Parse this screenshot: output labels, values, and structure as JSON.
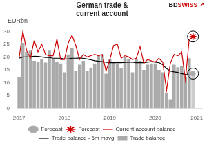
{
  "chart_data": {
    "type": "bar",
    "title": "German trade &\ncurrent account",
    "ylabel": "EURbn",
    "annotations": [
      {
        "text": "BD",
        "color": "#222222"
      },
      {
        "text": "SWISS",
        "color": "#cc0000"
      },
      {
        "text": "↗",
        "color": "#cc0000"
      }
    ],
    "categories": [
      "2017",
      null,
      null,
      null,
      null,
      null,
      null,
      null,
      null,
      null,
      null,
      null,
      "2018",
      null,
      null,
      null,
      null,
      null,
      null,
      null,
      null,
      null,
      null,
      null,
      "2019",
      null,
      null,
      null,
      null,
      null,
      null,
      null,
      null,
      null,
      null,
      null,
      "2020",
      null,
      null,
      null,
      null,
      null,
      null,
      null,
      null,
      null,
      null,
      "2021",
      null
    ],
    "ylim": [
      0,
      32
    ],
    "yticks": [
      0,
      5,
      10,
      15,
      20,
      25,
      30
    ],
    "grid": false,
    "legend": "bottom",
    "series": [
      {
        "name": "Trade balance",
        "type": "bar",
        "color": "#aaaaaa",
        "colors": [
          "#aaaaaa",
          "#aaaaaa",
          "#aaaaaa",
          "#aaaaaa",
          "#aaaaaa",
          "#aaaaaa",
          "#aaaaaa",
          "#aaaaaa",
          "#aaaaaa",
          "#aaaaaa",
          "#aaaaaa",
          "#aaaaaa",
          "#aaaaaa",
          "#aaaaaa",
          "#aaaaaa",
          "#aaaaaa",
          "#aaaaaa",
          "#aaaaaa",
          "#aaaaaa",
          "#aaaaaa",
          "#aaaaaa",
          "#aaaaaa",
          "#aaaaaa",
          "#aaaaaa",
          "#aaaaaa",
          "#aaaaaa",
          "#aaaaaa",
          "#aaaaaa",
          "#aaaaaa",
          "#aaaaaa",
          "#aaaaaa",
          "#aaaaaa",
          "#aaaaaa",
          "#aaaaaa",
          "#aaaaaa",
          "#aaaaaa",
          "#aaaaaa",
          "#aaaaaa",
          "#aaaaaa",
          "#aaaaaa",
          "#aaaaaa",
          "#aaaaaa",
          "#aaaaaa",
          "#aaaaaa",
          "#aaaaaa",
          "#aaaaaa",
          "#cccccc",
          null,
          null
        ],
        "values": [
          12.0,
          25.5,
          22.0,
          22.5,
          18.5,
          18.0,
          19.0,
          17.8,
          22.5,
          19.0,
          18.0,
          17.5,
          14.0,
          21.0,
          23.5,
          14.5,
          17.0,
          18.5,
          14.5,
          15.5,
          17.5,
          20.5,
          21.0,
          13.5,
          19.0,
          18.0,
          17.5,
          15.5,
          20.0,
          19.0,
          14.0,
          19.0,
          18.5,
          15.0,
          17.0,
          17.5,
          17.5,
          15.0,
          14.0,
          6.0,
          3.5,
          17.0,
          16.0,
          16.5,
          12.0,
          19.5,
          14.0,
          null,
          null
        ]
      },
      {
        "name": "Current account balance",
        "type": "line",
        "color": "#cc0000",
        "values": [
          19.5,
          30.0,
          22.5,
          19.5,
          26.5,
          22.0,
          25.0,
          21.0,
          20.5,
          20.5,
          27.0,
          19.0,
          19.0,
          25.5,
          28.5,
          24.5,
          19.0,
          21.0,
          20.0,
          20.5,
          21.0,
          20.5,
          21.0,
          14.5,
          19.0,
          24.5,
          25.0,
          19.5,
          20.5,
          20.0,
          19.0,
          19.5,
          24.0,
          17.5,
          19.0,
          18.5,
          18.0,
          19.5,
          18.0,
          7.0,
          17.5,
          21.0,
          20.5,
          22.0,
          11.0,
          27.0,
          null,
          null,
          null
        ]
      },
      {
        "name": "Forecast",
        "type": "scatter",
        "marker": "circle",
        "color": "#aaaaaa",
        "values": [
          null,
          null,
          null,
          null,
          null,
          null,
          null,
          null,
          null,
          null,
          null,
          null,
          null,
          null,
          null,
          null,
          null,
          null,
          null,
          null,
          null,
          null,
          null,
          null,
          null,
          null,
          null,
          null,
          null,
          null,
          null,
          null,
          null,
          null,
          null,
          null,
          null,
          null,
          null,
          null,
          null,
          null,
          null,
          null,
          null,
          null,
          13.5,
          null,
          null
        ]
      },
      {
        "name": "Forecast",
        "type": "scatter",
        "marker": "star",
        "color": "#cc0000",
        "values": [
          null,
          null,
          null,
          null,
          null,
          null,
          null,
          null,
          null,
          null,
          null,
          null,
          null,
          null,
          null,
          null,
          null,
          null,
          null,
          null,
          null,
          null,
          null,
          null,
          null,
          null,
          null,
          null,
          null,
          null,
          null,
          null,
          null,
          null,
          null,
          null,
          null,
          null,
          null,
          null,
          null,
          null,
          null,
          null,
          null,
          null,
          28.0,
          null,
          null
        ]
      },
      {
        "name": "Trade balance - 6m mavg",
        "type": "line",
        "color": "#000000",
        "values": [
          19.5,
          20.0,
          20.0,
          20.1,
          20.3,
          20.2,
          20.0,
          19.8,
          19.8,
          19.5,
          19.5,
          19.5,
          19.2,
          19.2,
          19.5,
          19.5,
          19.6,
          19.5,
          19.2,
          18.9,
          18.5,
          18.3,
          18.2,
          18.0,
          17.8,
          17.8,
          17.8,
          17.8,
          17.9,
          18.0,
          18.0,
          17.8,
          17.8,
          17.8,
          18.0,
          18.2,
          18.0,
          17.8,
          17.0,
          15.5,
          14.5,
          14.2,
          14.0,
          13.5,
          13.2,
          13.0,
          null,
          null,
          null
        ]
      }
    ]
  }
}
